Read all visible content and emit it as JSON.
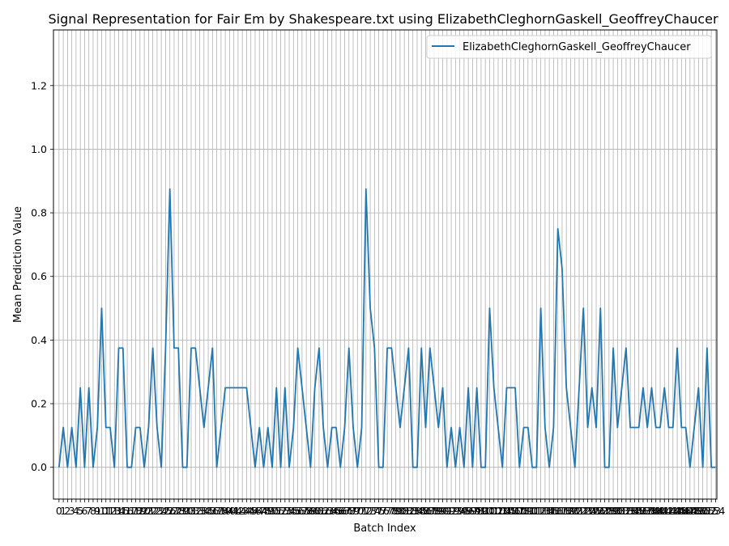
{
  "chart_data": {
    "type": "line",
    "title": "Signal Representation for Fair Em by Shakespeare.txt using ElizabethCleghornGaskell_GeoffreyChaucer",
    "xlabel": "Batch Index",
    "ylabel": "Mean Prediction Value",
    "xlim": [
      -1.3,
      154.3
    ],
    "ylim": [
      -0.1,
      1.375
    ],
    "yticks": [
      0.0,
      0.2,
      0.4,
      0.6,
      0.8,
      1.0,
      1.2
    ],
    "ytick_labels": [
      "0.0",
      "0.2",
      "0.4",
      "0.6",
      "0.8",
      "1.0",
      "1.2"
    ],
    "grid": true,
    "legend_position": "top-right",
    "series": [
      {
        "name": "ElizabethCleghornGaskell_GeoffreyChaucer",
        "color": "#1f77b4",
        "x_start": 0,
        "values": [
          0,
          0.125,
          0,
          0.125,
          0,
          0.25,
          0,
          0.25,
          0,
          0.125,
          0.5,
          0.125,
          0.125,
          0,
          0.375,
          0.375,
          0,
          0,
          0.125,
          0.125,
          0,
          0.125,
          0.375,
          0.125,
          0,
          0.375,
          0.875,
          0.375,
          0.375,
          0,
          0,
          0.375,
          0.375,
          0.25,
          0.125,
          0.25,
          0.375,
          0,
          0.125,
          0.25,
          0.25,
          0.25,
          0.25,
          0.25,
          0.25,
          0.125,
          0,
          0.125,
          0,
          0.125,
          0,
          0.25,
          0,
          0.25,
          0,
          0.125,
          0.375,
          0.25,
          0.125,
          0,
          0.25,
          0.375,
          0.125,
          0,
          0.125,
          0.125,
          0,
          0.125,
          0.375,
          0.125,
          0,
          0.125,
          0.875,
          0.5,
          0.375,
          0,
          0,
          0.375,
          0.375,
          0.25,
          0.125,
          0.25,
          0.375,
          0,
          0,
          0.375,
          0.125,
          0.375,
          0.25,
          0.125,
          0.25,
          0,
          0.125,
          0,
          0.125,
          0,
          0.25,
          0,
          0.25,
          0,
          0,
          0.5,
          0.25,
          0.125,
          0,
          0.25,
          0.25,
          0.25,
          0,
          0.125,
          0.125,
          0,
          0,
          0.5,
          0.125,
          0,
          0.125,
          0.75,
          0.625,
          0.25,
          0.125,
          0,
          0.25,
          0.5,
          0.125,
          0.25,
          0.125,
          0.5,
          0,
          0,
          0.375,
          0.125,
          0.25,
          0.375,
          0.125,
          0.125,
          0.125,
          0.25,
          0.125,
          0.25,
          0.125,
          0.125,
          0.25,
          0.125,
          0.125,
          0.375,
          0.125,
          0.125,
          0,
          0.125,
          0.25,
          0,
          0.375,
          0,
          0
        ]
      }
    ]
  }
}
